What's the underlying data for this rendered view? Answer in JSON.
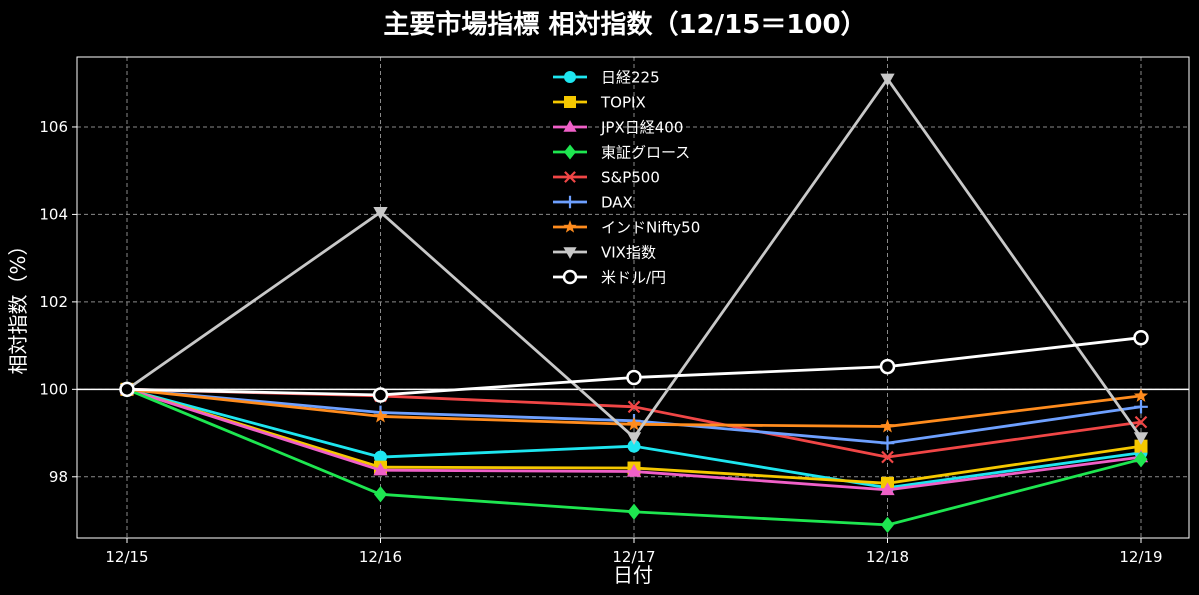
{
  "chart_data": {
    "type": "line",
    "title": "主要市場指標 相対指数（12/15＝100）",
    "xlabel": "日付",
    "ylabel": "相対指数（%）",
    "categories": [
      "12/15",
      "12/16",
      "12/17",
      "12/18",
      "12/19"
    ],
    "ylim": [
      96.6,
      107.6
    ],
    "yticks": [
      98,
      100,
      102,
      104,
      106
    ],
    "grid": true,
    "reference_line": 100,
    "legend_position": "top-center",
    "series": [
      {
        "name": "日経225",
        "color": "#1ee6f0",
        "marker": "circle",
        "values": [
          100,
          98.45,
          98.7,
          97.75,
          98.55
        ]
      },
      {
        "name": "TOPIX",
        "color": "#f5c800",
        "marker": "square",
        "values": [
          100,
          98.22,
          98.2,
          97.85,
          98.7
        ]
      },
      {
        "name": "JPX日経400",
        "color": "#f060c8",
        "marker": "triangle-up",
        "values": [
          100,
          98.15,
          98.12,
          97.7,
          98.45
        ]
      },
      {
        "name": "東証グロース",
        "color": "#1ee650",
        "marker": "diamond",
        "values": [
          100,
          97.6,
          97.2,
          96.9,
          98.4
        ]
      },
      {
        "name": "S&P500",
        "color": "#f04646",
        "marker": "x",
        "values": [
          100,
          99.85,
          99.6,
          98.45,
          99.25
        ]
      },
      {
        "name": "DAX",
        "color": "#6ea0ff",
        "marker": "plus",
        "values": [
          100,
          99.47,
          99.28,
          98.77,
          99.6
        ]
      },
      {
        "name": "インドNifty50",
        "color": "#ff8c1e",
        "marker": "star",
        "values": [
          100,
          99.38,
          99.2,
          99.15,
          99.85
        ]
      },
      {
        "name": "VIX指数",
        "color": "#c8c8c8",
        "marker": "triangle-down",
        "values": [
          100,
          104.05,
          98.9,
          107.1,
          98.9
        ]
      },
      {
        "name": "米ドル/円",
        "color": "#ffffff",
        "marker": "circle-open",
        "values": [
          100,
          99.87,
          100.27,
          100.52,
          101.18
        ]
      }
    ]
  }
}
